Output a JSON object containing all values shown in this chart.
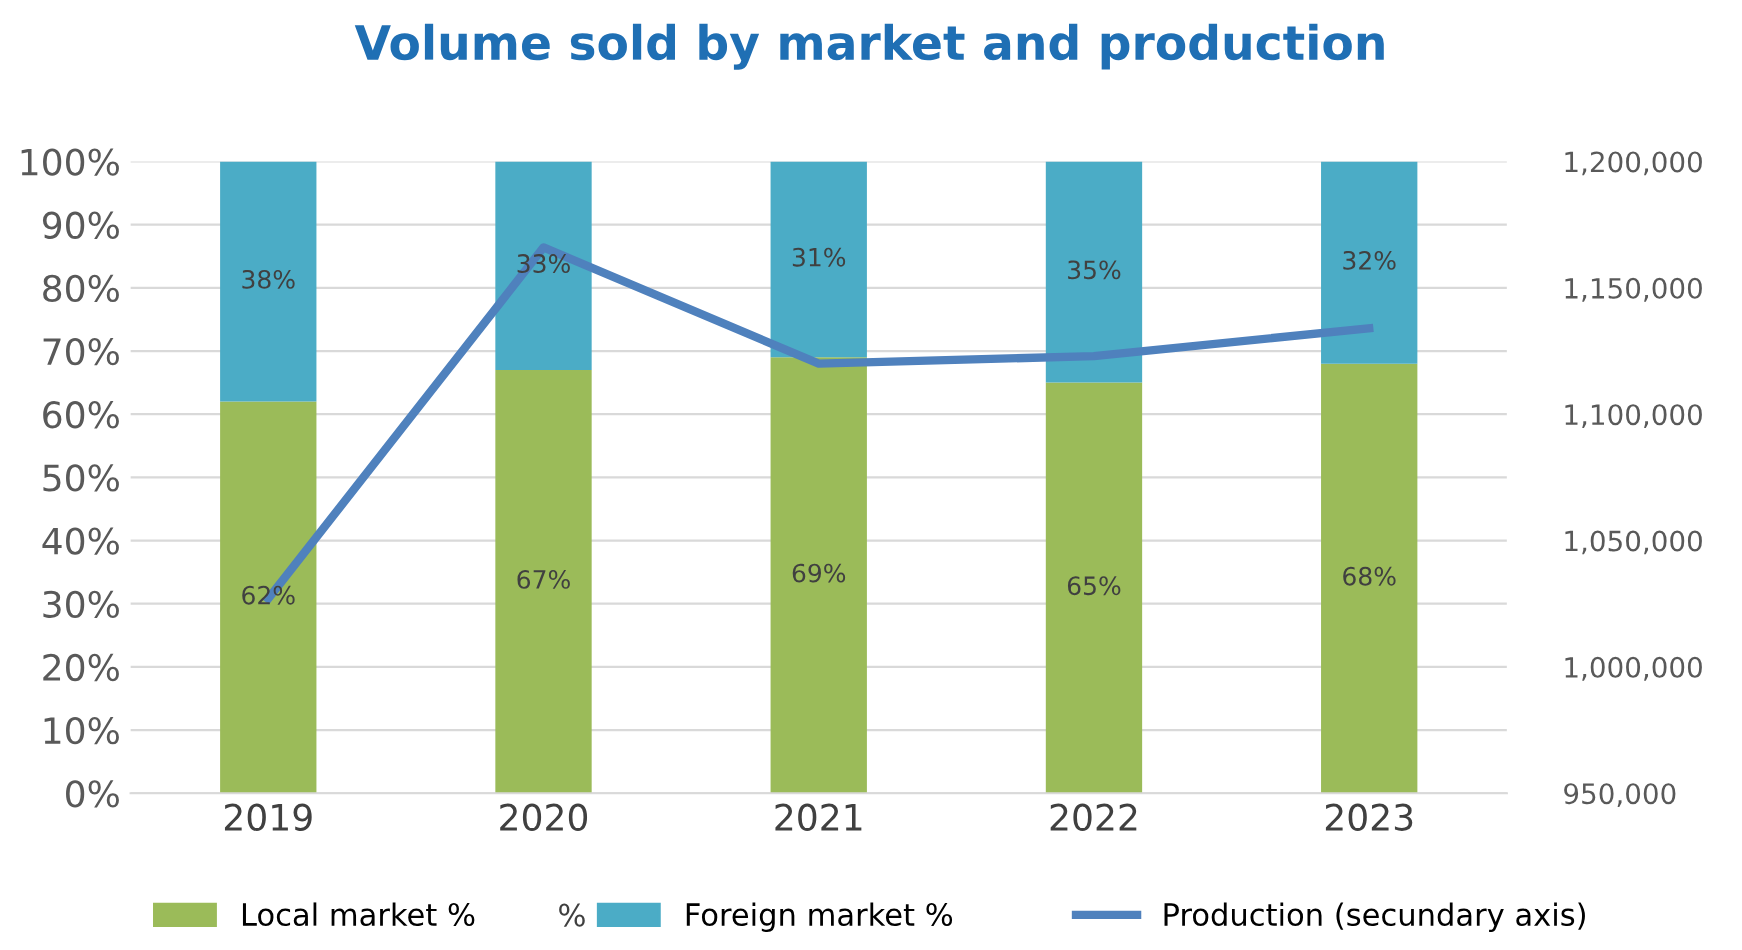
{
  "chart_data": {
    "type": "bar",
    "title": "Volume sold by market and production",
    "categories": [
      "2019",
      "2020",
      "2021",
      "2022",
      "2023"
    ],
    "stacked": true,
    "series": [
      {
        "name": "Local market %",
        "color": "#9bbb59",
        "values": [
          62,
          67,
          69,
          65,
          68
        ],
        "value_labels": [
          "62%",
          "67%",
          "69%",
          "65%",
          "68%"
        ]
      },
      {
        "name": "Foreign market %",
        "color": "#4bacc6",
        "values": [
          38,
          33,
          31,
          35,
          32
        ],
        "value_labels": [
          "38%",
          "33%",
          "31%",
          "35%",
          "32%"
        ]
      },
      {
        "name": "Production (secundary axis)",
        "type": "line",
        "axis": "y2",
        "color": "#4f81bd",
        "values": [
          1027000,
          1166000,
          1120000,
          1123000,
          1134000
        ]
      }
    ],
    "ylim": [
      0,
      100
    ],
    "yticks": [
      {
        "value": 0,
        "label": "0%"
      },
      {
        "value": 10,
        "label": "10%"
      },
      {
        "value": 20,
        "label": "20%"
      },
      {
        "value": 30,
        "label": "30%"
      },
      {
        "value": 40,
        "label": "40%"
      },
      {
        "value": 50,
        "label": "50%"
      },
      {
        "value": 60,
        "label": "60%"
      },
      {
        "value": 70,
        "label": "70%"
      },
      {
        "value": 80,
        "label": "80%"
      },
      {
        "value": 90,
        "label": "90%"
      },
      {
        "value": 100,
        "label": "100%"
      }
    ],
    "y2lim": [
      950000,
      1200000
    ],
    "y2ticks": [
      {
        "value": 950000,
        "label": "950,000"
      },
      {
        "value": 1000000,
        "label": "1,000,000"
      },
      {
        "value": 1050000,
        "label": "1,050,000"
      },
      {
        "value": 1100000,
        "label": "1,100,000"
      },
      {
        "value": 1150000,
        "label": "1,150,000"
      },
      {
        "value": 1200000,
        "label": "1,200,000"
      }
    ],
    "grid": "y",
    "legend": "bottom",
    "annotations": [
      "%"
    ]
  }
}
